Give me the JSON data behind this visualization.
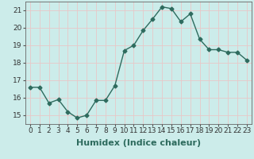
{
  "x": [
    0,
    1,
    2,
    3,
    4,
    5,
    6,
    7,
    8,
    9,
    10,
    11,
    12,
    13,
    14,
    15,
    16,
    17,
    18,
    19,
    20,
    21,
    22,
    23
  ],
  "y": [
    16.6,
    16.6,
    15.7,
    15.9,
    15.2,
    14.85,
    15.0,
    15.85,
    15.85,
    16.7,
    18.7,
    19.0,
    19.85,
    20.5,
    21.2,
    21.1,
    20.35,
    20.8,
    19.35,
    18.75,
    18.75,
    18.6,
    18.6,
    18.15
  ],
  "line_color": "#2e6b5e",
  "marker": "D",
  "marker_size": 2.5,
  "bg_color": "#ccecea",
  "grid_color": "#e8c8c8",
  "xlabel": "Humidex (Indice chaleur)",
  "ylabel": "",
  "xlim": [
    -0.5,
    23.5
  ],
  "ylim": [
    14.5,
    21.5
  ],
  "yticks": [
    15,
    16,
    17,
    18,
    19,
    20,
    21
  ],
  "xticks": [
    0,
    1,
    2,
    3,
    4,
    5,
    6,
    7,
    8,
    9,
    10,
    11,
    12,
    13,
    14,
    15,
    16,
    17,
    18,
    19,
    20,
    21,
    22,
    23
  ],
  "tick_label_fontsize": 6.5,
  "xlabel_fontsize": 8,
  "line_width": 1.0
}
